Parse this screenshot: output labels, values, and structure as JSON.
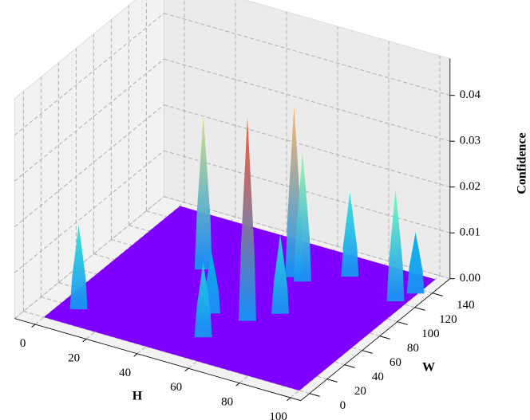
{
  "chart_data": {
    "type": "surface3d",
    "xlabel": "H",
    "ylabel": "W",
    "zlabel": "Confidence",
    "xlim": [
      -8,
      104
    ],
    "ylim": [
      -10,
      160
    ],
    "zlim": [
      0,
      0.048
    ],
    "xticks": [
      0,
      20,
      40,
      60,
      80,
      100
    ],
    "yticks": [
      0,
      20,
      40,
      60,
      80,
      100,
      120,
      140
    ],
    "zticks": [
      {
        "value": 0,
        "label": "0.00"
      },
      0.01,
      0.02,
      0.03,
      0.04
    ],
    "surface_extent": {
      "h": [
        0,
        100
      ],
      "w": [
        0,
        155
      ]
    },
    "floor_color": "#8000ff",
    "colormap": "rainbow",
    "grid": true,
    "peaks": [
      {
        "h": 5,
        "w": 25,
        "confidence": 0.017
      },
      {
        "h": 27,
        "w": 103,
        "confidence": 0.032
      },
      {
        "h": 51,
        "w": 33,
        "confidence": 0.015
      },
      {
        "h": 45,
        "w": 60,
        "confidence": 0.012
      },
      {
        "h": 58,
        "w": 63,
        "confidence": 0.043
      },
      {
        "h": 65,
        "w": 80,
        "confidence": 0.016
      },
      {
        "h": 56,
        "w": 122,
        "confidence": 0.036
      },
      {
        "h": 60,
        "w": 120,
        "confidence": 0.027
      },
      {
        "h": 72,
        "w": 139,
        "confidence": 0.017
      },
      {
        "h": 94,
        "w": 127,
        "confidence": 0.023
      },
      {
        "h": 97,
        "w": 141,
        "confidence": 0.012
      }
    ]
  }
}
